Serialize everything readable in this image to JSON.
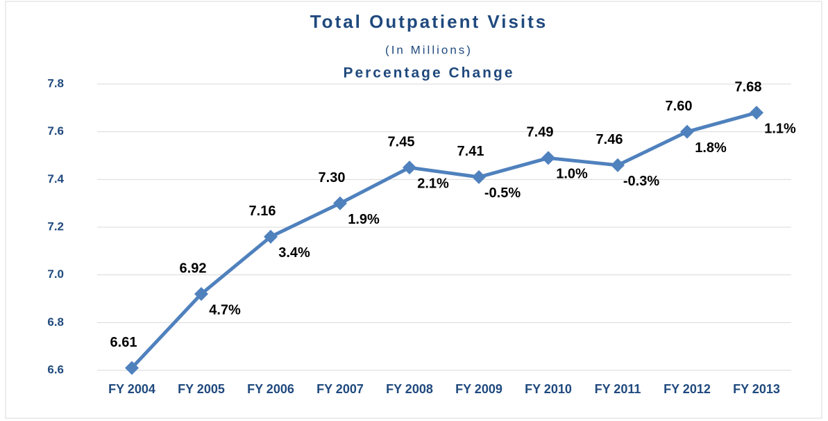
{
  "chart_data": {
    "type": "line",
    "title": "Total Outpatient Visits",
    "subtitle": "(In Millions)",
    "annotation_title": "Percentage Change",
    "categories": [
      "FY 2004",
      "FY 2005",
      "FY 2006",
      "FY 2007",
      "FY 2008",
      "FY 2009",
      "FY 2010",
      "FY 2011",
      "FY 2012",
      "FY 2013"
    ],
    "values": [
      6.61,
      6.92,
      7.16,
      7.3,
      7.45,
      7.41,
      7.49,
      7.46,
      7.6,
      7.68
    ],
    "value_labels": [
      "6.61",
      "6.92",
      "7.16",
      "7.30",
      "7.45",
      "7.41",
      "7.49",
      "7.46",
      "7.60",
      "7.68"
    ],
    "pct_change": [
      null,
      4.7,
      3.4,
      1.9,
      2.1,
      -0.5,
      1.0,
      -0.3,
      1.8,
      1.1
    ],
    "pct_change_labels": [
      null,
      "4.7%",
      "3.4%",
      "1.9%",
      "2.1%",
      "-0.5%",
      "1.0%",
      "-0.3%",
      "1.8%",
      "1.1%"
    ],
    "color": "#4f81bd",
    "ylim": [
      6.6,
      7.8
    ],
    "yticks": [
      6.6,
      6.8,
      {
        "value": 7,
        "label": "7.0"
      },
      7.2,
      7.4,
      7.6,
      7.8
    ],
    "grid": true
  }
}
